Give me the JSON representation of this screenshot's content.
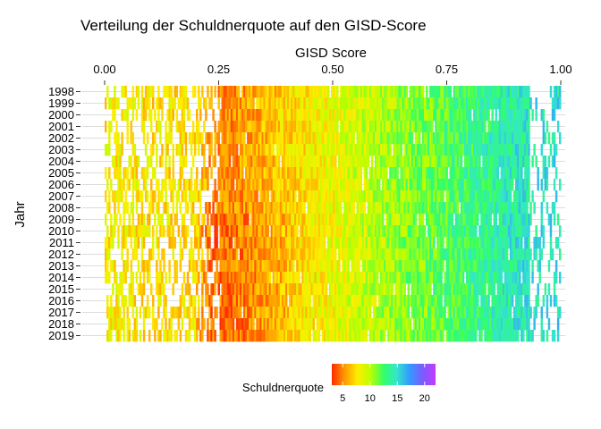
{
  "chart_data": {
    "type": "heatmap",
    "title": "Verteilung der Schuldnerquote auf den GISD-Score",
    "xlabel": "GISD Score",
    "ylabel": "Jahr",
    "xlim": [
      0,
      1
    ],
    "x_ticks": [
      "0.00",
      "0.25",
      "0.50",
      "0.75",
      "1.00"
    ],
    "x_axis_position": "top",
    "y_categories": [
      "1998",
      "1999",
      "2000",
      "2001",
      "2002",
      "2003",
      "2004",
      "2005",
      "2006",
      "2007",
      "2008",
      "2009",
      "2010",
      "2011",
      "2012",
      "2013",
      "2014",
      "2015",
      "2016",
      "2017",
      "2018",
      "2019"
    ],
    "grid": "horizontal",
    "legend": {
      "title": "Schuldnerquote",
      "placement": "bottom",
      "range": [
        3,
        22
      ],
      "ticks": [
        "5",
        "10",
        "15",
        "20"
      ],
      "colors": [
        "#ff2a00",
        "#ff9a00",
        "#ffee00",
        "#b8ff00",
        "#33ff66",
        "#33e6cc",
        "#3399ff",
        "#7a5cff",
        "#c23bff"
      ]
    },
    "profile_by_score": {
      "gisd": [
        0.0,
        0.1,
        0.2,
        0.23,
        0.3,
        0.4,
        0.5,
        0.6,
        0.7,
        0.8,
        0.9,
        1.0
      ],
      "schuldnerquote": [
        8,
        7.5,
        7.5,
        5,
        5.5,
        7,
        8.5,
        10,
        11.5,
        13,
        14.5,
        15
      ]
    }
  }
}
